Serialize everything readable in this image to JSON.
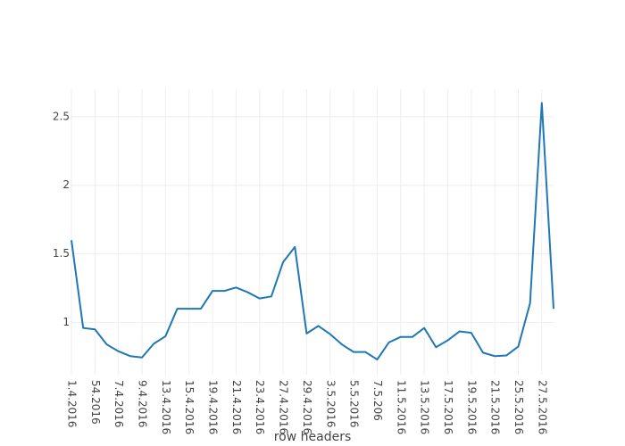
{
  "chart_data": {
    "type": "line",
    "x_label": "row headers",
    "categories": [
      "1.4.2016",
      null,
      "54.2016",
      null,
      "7.4.2016",
      null,
      "9.4.2016",
      null,
      "13.4.2016",
      null,
      "15.4.2016",
      null,
      "19.4.2016",
      null,
      "21.4.2016",
      null,
      "23.4.2016",
      null,
      "27.4.2016",
      null,
      "29.4.2016",
      null,
      "3.5.2016",
      null,
      "5.5.2016",
      null,
      "7.5.206",
      null,
      "11.5.2016",
      null,
      "13.5.2016",
      null,
      "17.5.2016",
      null,
      "19.5.2016",
      null,
      "21.5.2016",
      null,
      "25.5.2016",
      null,
      "27.5.2016",
      null
    ],
    "values": [
      1.6,
      0.96,
      0.95,
      0.84,
      0.79,
      0.755,
      0.745,
      0.845,
      0.9,
      1.1,
      1.1,
      1.1,
      1.23,
      1.23,
      1.255,
      1.22,
      1.175,
      1.19,
      1.44,
      1.55,
      0.92,
      0.975,
      0.915,
      0.84,
      0.785,
      0.785,
      0.73,
      0.855,
      0.895,
      0.895,
      0.96,
      0.82,
      0.87,
      0.935,
      0.925,
      0.78,
      0.755,
      0.76,
      0.825,
      1.14,
      2.6,
      1.1
    ],
    "color": "#1f77b4",
    "ylim": [
      0.62,
      2.7
    ],
    "yticks": [
      1,
      1.5,
      2,
      2.5
    ],
    "grid": true
  }
}
